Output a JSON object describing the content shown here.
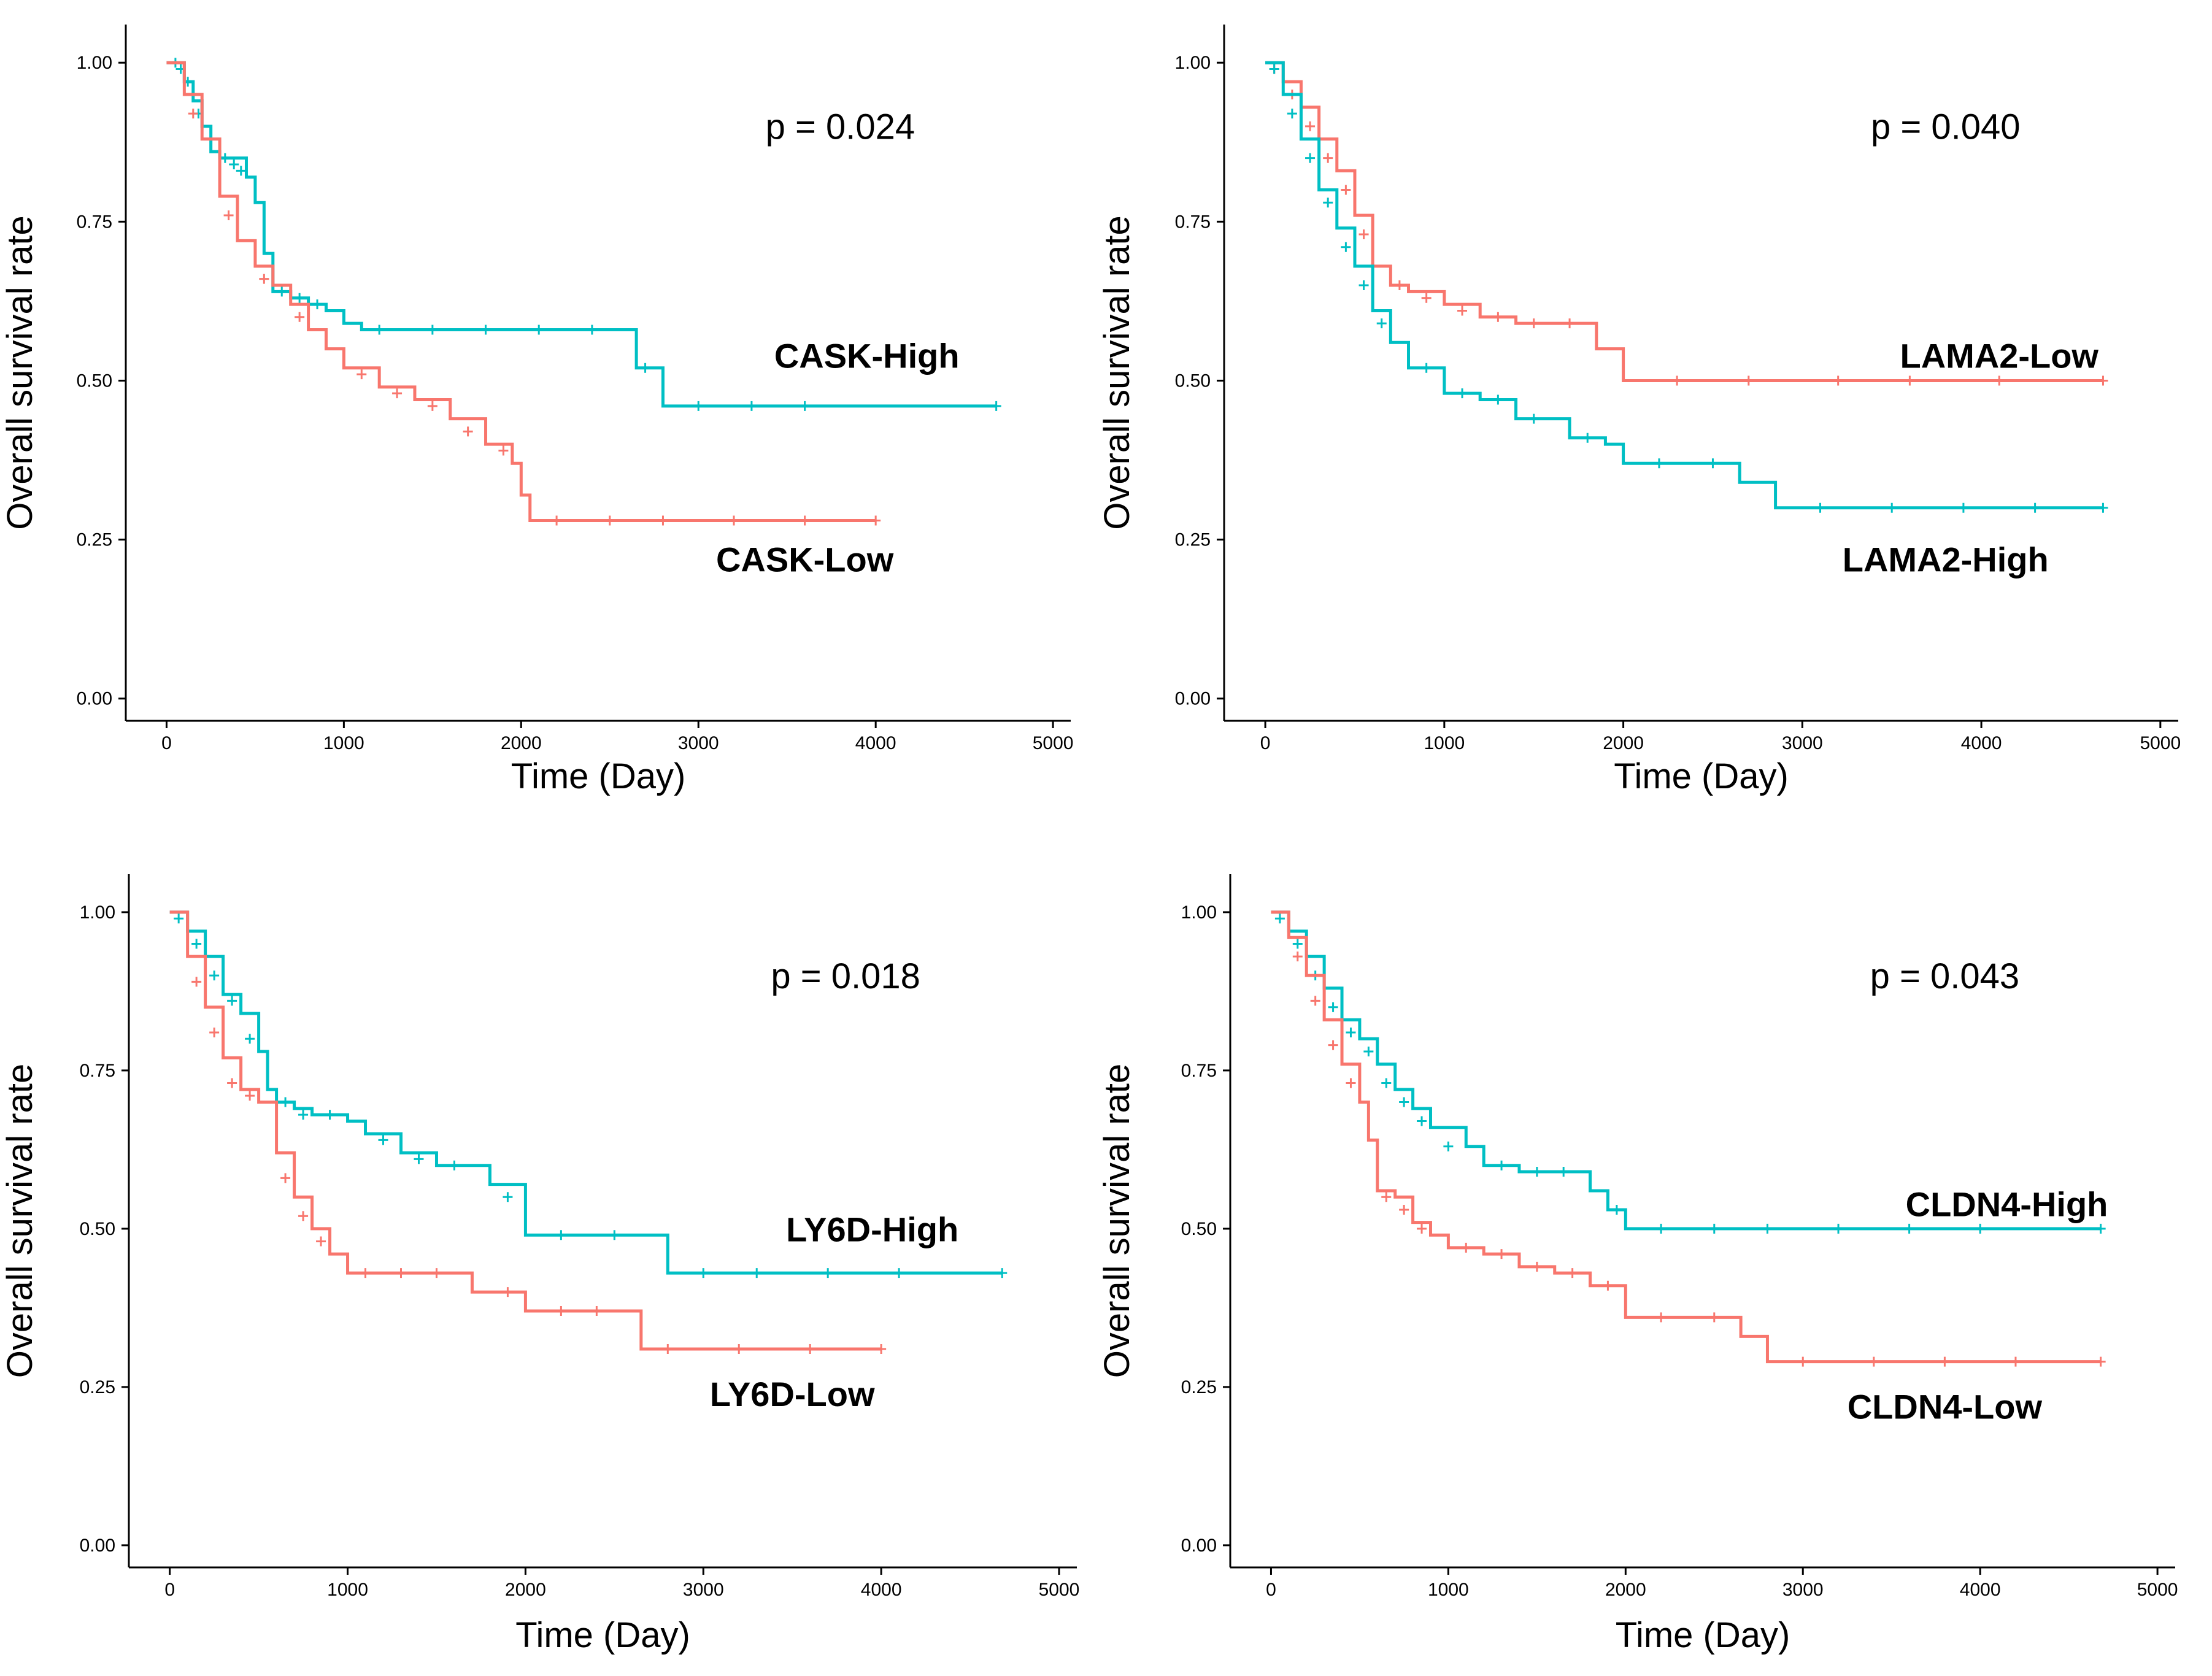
{
  "colors": {
    "high": "#00BFC4",
    "low": "#F8766D",
    "axis": "#000000"
  },
  "chart_data": [
    {
      "type": "line",
      "subtype": "kaplan-meier",
      "xlabel": "Time (Day)",
      "ylabel": "Overall survival rate",
      "xlim": [
        -230,
        5100
      ],
      "ylim": [
        -0.035,
        1.06
      ],
      "xticks": [
        0,
        1000,
        2000,
        3000,
        4000,
        5000
      ],
      "xtick_labels": [
        "0",
        "1000",
        "2000",
        "3000",
        "4000",
        "5000"
      ],
      "yticks": [
        0.0,
        0.25,
        0.5,
        0.75,
        1.0
      ],
      "ytick_labels": [
        "0.00",
        "0.25",
        "0.50",
        "0.75",
        "1.00"
      ],
      "pvalue_text": "p = 0.024",
      "pvalue_pos": [
        3800,
        0.88
      ],
      "series": [
        {
          "name": "CASK-High",
          "color_key": "high",
          "label_text": "CASK-High",
          "label_pos": [
            3950,
            0.52
          ],
          "x": [
            0,
            100,
            150,
            200,
            250,
            300,
            450,
            500,
            550,
            600,
            700,
            800,
            900,
            1000,
            1100,
            2650,
            2800,
            4680
          ],
          "y": [
            1.0,
            0.97,
            0.94,
            0.9,
            0.86,
            0.85,
            0.82,
            0.78,
            0.7,
            0.64,
            0.63,
            0.62,
            0.61,
            0.59,
            0.58,
            0.52,
            0.46,
            0.46
          ],
          "censor_x": [
            50,
            80,
            120,
            180,
            330,
            380,
            420,
            650,
            750,
            850,
            1200,
            1500,
            1800,
            2100,
            2400,
            2700,
            3000,
            3300,
            3600,
            4680
          ],
          "censor_y": [
            1.0,
            0.99,
            0.97,
            0.92,
            0.85,
            0.84,
            0.83,
            0.64,
            0.63,
            0.62,
            0.58,
            0.58,
            0.58,
            0.58,
            0.58,
            0.52,
            0.46,
            0.46,
            0.46,
            0.46
          ]
        },
        {
          "name": "CASK-Low",
          "color_key": "low",
          "label_text": "CASK-Low",
          "label_pos": [
            3600,
            0.2
          ],
          "x": [
            0,
            100,
            200,
            300,
            400,
            500,
            600,
            700,
            800,
            900,
            1000,
            1200,
            1400,
            1600,
            1800,
            1950,
            2000,
            2050,
            4000
          ],
          "y": [
            1.0,
            0.95,
            0.88,
            0.79,
            0.72,
            0.68,
            0.65,
            0.62,
            0.58,
            0.55,
            0.52,
            0.49,
            0.47,
            0.44,
            0.4,
            0.37,
            0.32,
            0.28,
            0.28
          ],
          "censor_x": [
            150,
            350,
            550,
            750,
            1100,
            1300,
            1500,
            1700,
            1900,
            2200,
            2500,
            2800,
            3200,
            3600,
            4000
          ],
          "censor_y": [
            0.92,
            0.76,
            0.66,
            0.6,
            0.51,
            0.48,
            0.46,
            0.42,
            0.39,
            0.28,
            0.28,
            0.28,
            0.28,
            0.28,
            0.28
          ]
        }
      ]
    },
    {
      "type": "line",
      "subtype": "kaplan-meier",
      "xlabel": "Time (Day)",
      "ylabel": "Overall survival rate",
      "xlim": [
        -230,
        5100
      ],
      "ylim": [
        -0.035,
        1.06
      ],
      "xticks": [
        0,
        1000,
        2000,
        3000,
        4000,
        5000
      ],
      "xtick_labels": [
        "0",
        "1000",
        "2000",
        "3000",
        "4000",
        "5000"
      ],
      "yticks": [
        0.0,
        0.25,
        0.5,
        0.75,
        1.0
      ],
      "ytick_labels": [
        "0.00",
        "0.25",
        "0.50",
        "0.75",
        "1.00"
      ],
      "pvalue_text": "p = 0.040",
      "pvalue_pos": [
        3800,
        0.88
      ],
      "series": [
        {
          "name": "LAMA2-Low",
          "color_key": "low",
          "label_text": "LAMA2-Low",
          "label_pos": [
            4100,
            0.52
          ],
          "x": [
            0,
            100,
            200,
            300,
            400,
            500,
            600,
            700,
            800,
            1000,
            1200,
            1400,
            1850,
            2000,
            4680
          ],
          "y": [
            1.0,
            0.97,
            0.93,
            0.88,
            0.83,
            0.76,
            0.68,
            0.65,
            0.64,
            0.62,
            0.6,
            0.59,
            0.55,
            0.5,
            0.5
          ],
          "censor_x": [
            50,
            150,
            250,
            350,
            450,
            550,
            750,
            900,
            1100,
            1300,
            1500,
            1700,
            2300,
            2700,
            3200,
            3600,
            4100,
            4680
          ],
          "censor_y": [
            0.99,
            0.95,
            0.9,
            0.85,
            0.8,
            0.73,
            0.65,
            0.63,
            0.61,
            0.6,
            0.59,
            0.59,
            0.5,
            0.5,
            0.5,
            0.5,
            0.5,
            0.5
          ]
        },
        {
          "name": "LAMA2-High",
          "color_key": "high",
          "label_text": "LAMA2-High",
          "label_pos": [
            3800,
            0.2
          ],
          "x": [
            0,
            100,
            200,
            300,
            400,
            500,
            600,
            700,
            800,
            1000,
            1200,
            1400,
            1700,
            1900,
            2000,
            2650,
            2850,
            4680
          ],
          "y": [
            1.0,
            0.95,
            0.88,
            0.8,
            0.74,
            0.68,
            0.61,
            0.56,
            0.52,
            0.48,
            0.47,
            0.44,
            0.41,
            0.4,
            0.37,
            0.34,
            0.3,
            0.3
          ],
          "censor_x": [
            50,
            150,
            250,
            350,
            450,
            550,
            650,
            900,
            1100,
            1300,
            1500,
            1800,
            2200,
            2500,
            3100,
            3500,
            3900,
            4300,
            4680
          ],
          "censor_y": [
            0.99,
            0.92,
            0.85,
            0.78,
            0.71,
            0.65,
            0.59,
            0.52,
            0.48,
            0.47,
            0.44,
            0.41,
            0.37,
            0.37,
            0.3,
            0.3,
            0.3,
            0.3,
            0.3
          ]
        }
      ]
    },
    {
      "type": "line",
      "subtype": "kaplan-meier",
      "xlabel": "Time (Day)",
      "ylabel": "Overall survival rate",
      "xlim": [
        -230,
        5100
      ],
      "ylim": [
        -0.035,
        1.06
      ],
      "xticks": [
        0,
        1000,
        2000,
        3000,
        4000,
        5000
      ],
      "xtick_labels": [
        "0",
        "1000",
        "2000",
        "3000",
        "4000",
        "5000"
      ],
      "yticks": [
        0.0,
        0.25,
        0.5,
        0.75,
        1.0
      ],
      "ytick_labels": [
        "0.00",
        "0.25",
        "0.50",
        "0.75",
        "1.00"
      ],
      "pvalue_text": "p = 0.018",
      "pvalue_pos": [
        3800,
        0.88
      ],
      "series": [
        {
          "name": "LY6D-High",
          "color_key": "high",
          "label_text": "LY6D-High",
          "label_pos": [
            3950,
            0.48
          ],
          "x": [
            0,
            100,
            200,
            300,
            400,
            500,
            550,
            600,
            700,
            800,
            1000,
            1100,
            1300,
            1500,
            1800,
            2000,
            2800,
            4680
          ],
          "y": [
            1.0,
            0.97,
            0.93,
            0.87,
            0.84,
            0.78,
            0.72,
            0.7,
            0.69,
            0.68,
            0.67,
            0.65,
            0.62,
            0.6,
            0.57,
            0.49,
            0.43,
            0.43
          ],
          "censor_x": [
            50,
            150,
            250,
            350,
            450,
            650,
            750,
            900,
            1200,
            1400,
            1600,
            1900,
            2200,
            2500,
            3000,
            3300,
            3700,
            4100,
            4680
          ],
          "censor_y": [
            0.99,
            0.95,
            0.9,
            0.86,
            0.8,
            0.7,
            0.68,
            0.68,
            0.64,
            0.61,
            0.6,
            0.55,
            0.49,
            0.49,
            0.43,
            0.43,
            0.43,
            0.43,
            0.43
          ]
        },
        {
          "name": "LY6D-Low",
          "color_key": "low",
          "label_text": "LY6D-Low",
          "label_pos": [
            3500,
            0.22
          ],
          "x": [
            0,
            100,
            200,
            300,
            400,
            500,
            600,
            700,
            800,
            900,
            1000,
            1700,
            2000,
            2650,
            4000
          ],
          "y": [
            1.0,
            0.93,
            0.85,
            0.77,
            0.72,
            0.7,
            0.62,
            0.55,
            0.5,
            0.46,
            0.43,
            0.4,
            0.37,
            0.31,
            0.31
          ],
          "censor_x": [
            150,
            250,
            350,
            450,
            650,
            750,
            850,
            1100,
            1300,
            1500,
            1900,
            2200,
            2400,
            2800,
            3200,
            3600,
            4000
          ],
          "censor_y": [
            0.89,
            0.81,
            0.73,
            0.71,
            0.58,
            0.52,
            0.48,
            0.43,
            0.43,
            0.43,
            0.4,
            0.37,
            0.37,
            0.31,
            0.31,
            0.31,
            0.31
          ]
        }
      ]
    },
    {
      "type": "line",
      "subtype": "kaplan-meier",
      "xlabel": "Time (Day)",
      "ylabel": "Overall survival rate",
      "xlim": [
        -230,
        5100
      ],
      "ylim": [
        -0.035,
        1.06
      ],
      "xticks": [
        0,
        1000,
        2000,
        3000,
        4000,
        5000
      ],
      "xtick_labels": [
        "0",
        "1000",
        "2000",
        "3000",
        "4000",
        "5000"
      ],
      "yticks": [
        0.0,
        0.25,
        0.5,
        0.75,
        1.0
      ],
      "ytick_labels": [
        "0.00",
        "0.25",
        "0.50",
        "0.75",
        "1.00"
      ],
      "pvalue_text": "p = 0.043",
      "pvalue_pos": [
        3800,
        0.88
      ],
      "series": [
        {
          "name": "CLDN4-High",
          "color_key": "high",
          "label_text": "CLDN4-High",
          "label_pos": [
            4150,
            0.52
          ],
          "x": [
            0,
            100,
            200,
            300,
            400,
            500,
            600,
            700,
            800,
            900,
            1100,
            1200,
            1400,
            1600,
            1700,
            1800,
            1900,
            2000,
            4680
          ],
          "y": [
            1.0,
            0.97,
            0.93,
            0.88,
            0.83,
            0.8,
            0.76,
            0.72,
            0.69,
            0.66,
            0.63,
            0.6,
            0.59,
            0.59,
            0.59,
            0.56,
            0.53,
            0.5,
            0.5
          ],
          "censor_x": [
            50,
            150,
            250,
            350,
            450,
            550,
            650,
            750,
            850,
            1000,
            1300,
            1500,
            1650,
            1950,
            2200,
            2500,
            2800,
            3200,
            3600,
            4000,
            4680
          ],
          "censor_y": [
            0.99,
            0.95,
            0.9,
            0.85,
            0.81,
            0.78,
            0.73,
            0.7,
            0.67,
            0.63,
            0.6,
            0.59,
            0.59,
            0.53,
            0.5,
            0.5,
            0.5,
            0.5,
            0.5,
            0.5,
            0.5
          ]
        },
        {
          "name": "CLDN4-Low",
          "color_key": "low",
          "label_text": "CLDN4-Low",
          "label_pos": [
            3800,
            0.2
          ],
          "x": [
            0,
            100,
            200,
            300,
            400,
            500,
            550,
            600,
            700,
            800,
            900,
            1000,
            1200,
            1400,
            1600,
            1800,
            2000,
            2650,
            2800,
            4680
          ],
          "y": [
            1.0,
            0.96,
            0.9,
            0.83,
            0.76,
            0.7,
            0.64,
            0.56,
            0.55,
            0.51,
            0.49,
            0.47,
            0.46,
            0.44,
            0.43,
            0.41,
            0.36,
            0.33,
            0.29,
            0.29
          ],
          "censor_x": [
            150,
            250,
            350,
            450,
            650,
            750,
            850,
            1100,
            1300,
            1500,
            1700,
            1900,
            2200,
            2500,
            3000,
            3400,
            3800,
            4200,
            4680
          ],
          "censor_y": [
            0.93,
            0.86,
            0.79,
            0.73,
            0.55,
            0.53,
            0.5,
            0.47,
            0.46,
            0.44,
            0.43,
            0.41,
            0.36,
            0.36,
            0.29,
            0.29,
            0.29,
            0.29,
            0.29
          ]
        }
      ]
    }
  ]
}
